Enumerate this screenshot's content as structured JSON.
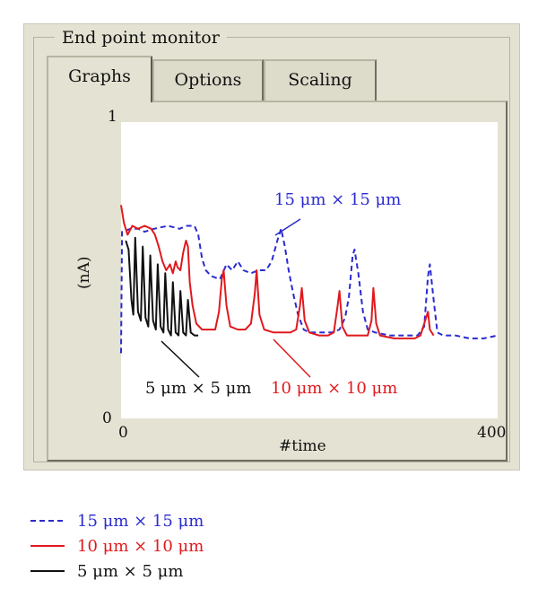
{
  "window": {
    "title": "End point monitor"
  },
  "tabs": [
    {
      "label": "Graphs",
      "active": true
    },
    {
      "label": "Options",
      "active": false
    },
    {
      "label": "Scaling",
      "active": false
    }
  ],
  "chart_data": {
    "type": "line",
    "xlabel": "#time",
    "ylabel": "(nA)",
    "xlim": [
      0,
      400
    ],
    "ylim": [
      0,
      1
    ],
    "x_ticks": [
      "0",
      "400"
    ],
    "y_ticks": [
      "0",
      "1"
    ],
    "grid": false,
    "legend_position": "below",
    "series": [
      {
        "name": "15 μm × 15 μm",
        "color": "#2b2bd0",
        "style": "dashed",
        "points": [
          [
            0,
            0.22
          ],
          [
            1,
            0.63
          ],
          [
            10,
            0.64
          ],
          [
            18,
            0.64
          ],
          [
            25,
            0.63
          ],
          [
            35,
            0.64
          ],
          [
            50,
            0.65
          ],
          [
            62,
            0.64
          ],
          [
            70,
            0.65
          ],
          [
            78,
            0.65
          ],
          [
            82,
            0.62
          ],
          [
            86,
            0.54
          ],
          [
            90,
            0.5
          ],
          [
            96,
            0.48
          ],
          [
            105,
            0.47
          ],
          [
            112,
            0.52
          ],
          [
            118,
            0.5
          ],
          [
            124,
            0.53
          ],
          [
            130,
            0.5
          ],
          [
            138,
            0.49
          ],
          [
            146,
            0.5
          ],
          [
            154,
            0.5
          ],
          [
            160,
            0.53
          ],
          [
            166,
            0.6
          ],
          [
            170,
            0.64
          ],
          [
            174,
            0.58
          ],
          [
            178,
            0.5
          ],
          [
            183,
            0.42
          ],
          [
            188,
            0.35
          ],
          [
            194,
            0.3
          ],
          [
            200,
            0.29
          ],
          [
            210,
            0.29
          ],
          [
            218,
            0.29
          ],
          [
            224,
            0.29
          ],
          [
            232,
            0.3
          ],
          [
            238,
            0.34
          ],
          [
            242,
            0.41
          ],
          [
            246,
            0.55
          ],
          [
            248,
            0.57
          ],
          [
            252,
            0.49
          ],
          [
            257,
            0.36
          ],
          [
            262,
            0.3
          ],
          [
            270,
            0.29
          ],
          [
            285,
            0.28
          ],
          [
            300,
            0.28
          ],
          [
            315,
            0.28
          ],
          [
            322,
            0.31
          ],
          [
            326,
            0.48
          ],
          [
            328,
            0.52
          ],
          [
            332,
            0.4
          ],
          [
            336,
            0.29
          ],
          [
            342,
            0.28
          ],
          [
            355,
            0.28
          ],
          [
            370,
            0.27
          ],
          [
            385,
            0.27
          ],
          [
            400,
            0.28
          ]
        ]
      },
      {
        "name": "10 μm × 10 μm",
        "color": "#e0191e",
        "style": "solid",
        "points": [
          [
            0,
            0.72
          ],
          [
            3,
            0.66
          ],
          [
            7,
            0.62
          ],
          [
            12,
            0.65
          ],
          [
            18,
            0.64
          ],
          [
            25,
            0.65
          ],
          [
            32,
            0.64
          ],
          [
            36,
            0.62
          ],
          [
            40,
            0.58
          ],
          [
            44,
            0.53
          ],
          [
            48,
            0.5
          ],
          [
            52,
            0.52
          ],
          [
            55,
            0.49
          ],
          [
            58,
            0.53
          ],
          [
            60,
            0.51
          ],
          [
            63,
            0.5
          ],
          [
            66,
            0.56
          ],
          [
            69,
            0.6
          ],
          [
            71,
            0.58
          ],
          [
            73,
            0.46
          ],
          [
            76,
            0.38
          ],
          [
            80,
            0.32
          ],
          [
            86,
            0.3
          ],
          [
            94,
            0.3
          ],
          [
            100,
            0.3
          ],
          [
            104,
            0.36
          ],
          [
            107,
            0.47
          ],
          [
            109,
            0.5
          ],
          [
            112,
            0.38
          ],
          [
            116,
            0.31
          ],
          [
            124,
            0.3
          ],
          [
            132,
            0.3
          ],
          [
            138,
            0.32
          ],
          [
            142,
            0.42
          ],
          [
            144,
            0.5
          ],
          [
            147,
            0.35
          ],
          [
            152,
            0.3
          ],
          [
            162,
            0.29
          ],
          [
            172,
            0.29
          ],
          [
            180,
            0.29
          ],
          [
            186,
            0.3
          ],
          [
            190,
            0.38
          ],
          [
            192,
            0.44
          ],
          [
            195,
            0.33
          ],
          [
            200,
            0.29
          ],
          [
            210,
            0.28
          ],
          [
            220,
            0.28
          ],
          [
            226,
            0.29
          ],
          [
            230,
            0.38
          ],
          [
            232,
            0.43
          ],
          [
            235,
            0.31
          ],
          [
            240,
            0.28
          ],
          [
            252,
            0.28
          ],
          [
            262,
            0.28
          ],
          [
            266,
            0.33
          ],
          [
            268,
            0.44
          ],
          [
            271,
            0.32
          ],
          [
            275,
            0.28
          ],
          [
            290,
            0.27
          ],
          [
            305,
            0.27
          ],
          [
            312,
            0.27
          ],
          [
            318,
            0.28
          ],
          [
            322,
            0.32
          ],
          [
            326,
            0.36
          ],
          [
            328,
            0.3
          ],
          [
            332,
            0.28
          ]
        ]
      },
      {
        "name": "5 μm × 5 μm",
        "color": "#111111",
        "style": "solid",
        "points": [
          [
            5,
            0.6
          ],
          [
            8,
            0.57
          ],
          [
            11,
            0.4
          ],
          [
            13,
            0.35
          ],
          [
            15,
            0.61
          ],
          [
            18,
            0.36
          ],
          [
            21,
            0.33
          ],
          [
            23,
            0.58
          ],
          [
            26,
            0.34
          ],
          [
            29,
            0.31
          ],
          [
            31,
            0.55
          ],
          [
            34,
            0.33
          ],
          [
            37,
            0.3
          ],
          [
            39,
            0.52
          ],
          [
            42,
            0.31
          ],
          [
            45,
            0.29
          ],
          [
            47,
            0.49
          ],
          [
            50,
            0.3
          ],
          [
            53,
            0.28
          ],
          [
            55,
            0.46
          ],
          [
            58,
            0.29
          ],
          [
            61,
            0.28
          ],
          [
            63,
            0.43
          ],
          [
            66,
            0.29
          ],
          [
            69,
            0.28
          ],
          [
            71,
            0.4
          ],
          [
            74,
            0.29
          ],
          [
            78,
            0.28
          ],
          [
            82,
            0.28
          ]
        ]
      }
    ],
    "annotations": [
      {
        "text": "15 μm × 15 μm",
        "color": "#2b2bd0"
      },
      {
        "text": "10 μm × 10 μm",
        "color": "#e0191e"
      },
      {
        "text": "5 μm × 5 μm",
        "color": "#111111"
      }
    ]
  }
}
